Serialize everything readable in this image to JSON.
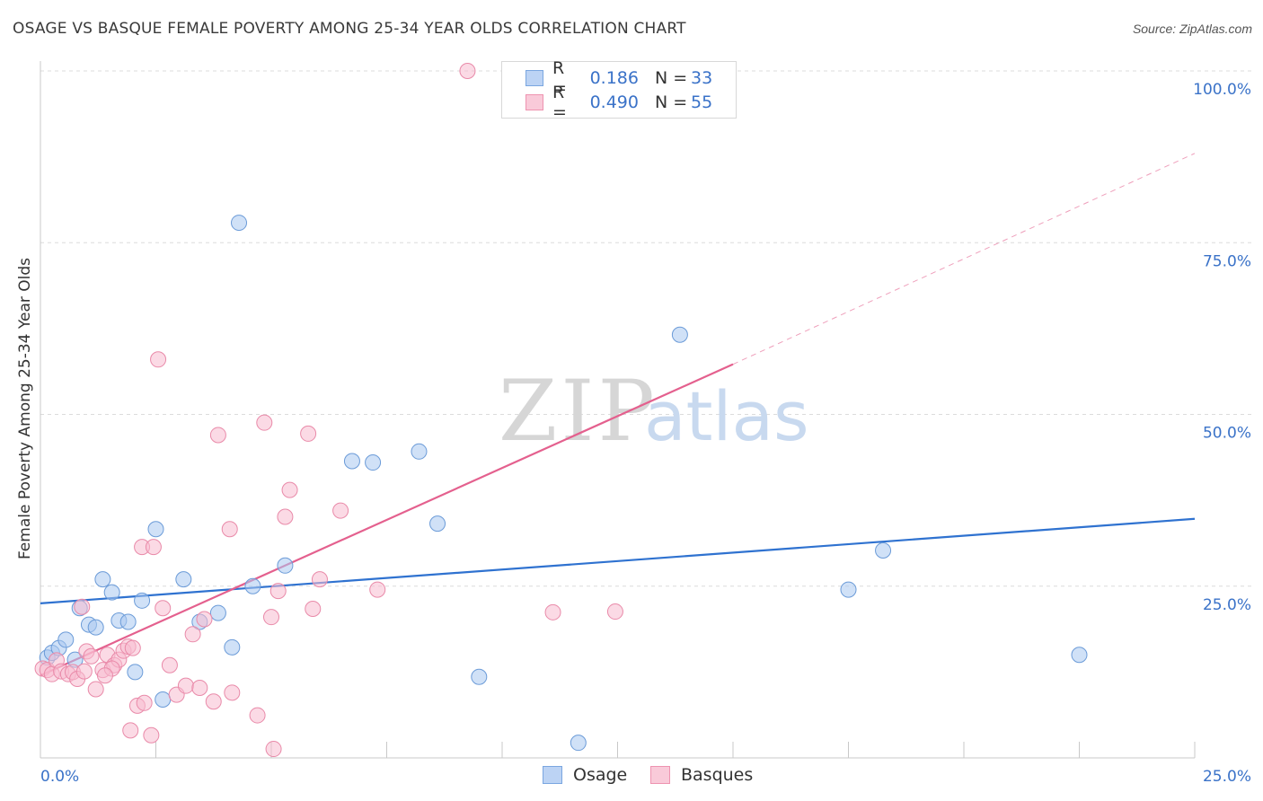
{
  "title": "OSAGE VS BASQUE FEMALE POVERTY AMONG 25-34 YEAR OLDS CORRELATION CHART",
  "source": "Source: ZipAtlas.com",
  "watermark": {
    "zip": "ZIP",
    "atlas": "atlas"
  },
  "legend": {
    "rows": [
      {
        "r_label": "R =",
        "r_value": "0.186",
        "n_label": "N =",
        "n_value": "33",
        "color": "#a9c8f0",
        "stroke": "#7aa6e0"
      },
      {
        "r_label": "R =",
        "r_value": "0.490",
        "n_label": "N =",
        "n_value": "55",
        "color": "#f7bcd0",
        "stroke": "#ee93b0"
      }
    ]
  },
  "bottom_legend": [
    {
      "label": "Osage",
      "color": "#bcd3f4",
      "stroke": "#7aa6e0"
    },
    {
      "label": "Basques",
      "color": "#f9cad9",
      "stroke": "#ee93b0"
    }
  ],
  "chart_data": {
    "type": "scatter",
    "xlabel": "",
    "ylabel": "Female Poverty Among 25-34 Year Olds",
    "xlim": [
      0,
      25
    ],
    "ylim": [
      0,
      105
    ],
    "x_ticks": [
      "0.0%",
      "25.0%"
    ],
    "y_ticks": [
      {
        "value": 25,
        "label": "25.0%"
      },
      {
        "value": 50,
        "label": "50.0%"
      },
      {
        "value": 75,
        "label": "75.0%"
      },
      {
        "value": 100,
        "label": "100.0%"
      }
    ],
    "grid": true,
    "series": [
      {
        "name": "Osage",
        "color": "#a9c8f0",
        "stroke": "#6b9bd8",
        "trend_color": "#2f72d0",
        "trend": {
          "x0": 0,
          "y0": 22.5,
          "x1": 25,
          "y1": 34.8
        },
        "points": [
          [
            0.15,
            14.6
          ],
          [
            0.25,
            15.3
          ],
          [
            0.4,
            16.0
          ],
          [
            0.55,
            17.2
          ],
          [
            0.75,
            14.3
          ],
          [
            0.85,
            21.8
          ],
          [
            1.05,
            19.4
          ],
          [
            1.2,
            19.0
          ],
          [
            1.35,
            26.0
          ],
          [
            1.55,
            24.1
          ],
          [
            1.7,
            20.0
          ],
          [
            1.9,
            19.8
          ],
          [
            2.05,
            12.5
          ],
          [
            2.2,
            22.9
          ],
          [
            2.5,
            33.3
          ],
          [
            2.65,
            8.5
          ],
          [
            3.1,
            26.0
          ],
          [
            3.45,
            19.8
          ],
          [
            3.85,
            21.1
          ],
          [
            4.15,
            16.1
          ],
          [
            4.3,
            77.9
          ],
          [
            4.6,
            25.0
          ],
          [
            5.3,
            28.0
          ],
          [
            6.75,
            43.2
          ],
          [
            7.2,
            43.0
          ],
          [
            8.2,
            44.6
          ],
          [
            8.6,
            34.1
          ],
          [
            9.5,
            11.8
          ],
          [
            11.65,
            2.2
          ],
          [
            13.85,
            61.6
          ],
          [
            17.5,
            24.5
          ],
          [
            18.25,
            30.2
          ],
          [
            22.5,
            15.0
          ]
        ]
      },
      {
        "name": "Basques",
        "color": "#f7bcd0",
        "stroke": "#e98aa9",
        "trend_color": "#e4608e",
        "trend": {
          "x0": 0,
          "y0": 12.0,
          "x1": 15.0,
          "y1": 57.3
        },
        "trend_dashed_to": {
          "x": 25,
          "y": 88.0
        },
        "points": [
          [
            0.05,
            13.0
          ],
          [
            0.15,
            12.8
          ],
          [
            0.25,
            12.2
          ],
          [
            0.35,
            14.2
          ],
          [
            0.45,
            12.6
          ],
          [
            0.6,
            12.2
          ],
          [
            0.7,
            12.5
          ],
          [
            0.8,
            11.5
          ],
          [
            0.9,
            22.0
          ],
          [
            1.0,
            15.5
          ],
          [
            1.1,
            14.8
          ],
          [
            1.2,
            10.0
          ],
          [
            1.35,
            12.8
          ],
          [
            1.45,
            15.0
          ],
          [
            1.6,
            13.5
          ],
          [
            1.7,
            14.3
          ],
          [
            1.8,
            15.6
          ],
          [
            1.9,
            16.2
          ],
          [
            1.55,
            13.0
          ],
          [
            1.95,
            4.0
          ],
          [
            2.1,
            7.6
          ],
          [
            2.2,
            30.7
          ],
          [
            2.45,
            30.7
          ],
          [
            2.25,
            8.0
          ],
          [
            2.4,
            3.3
          ],
          [
            2.55,
            58.0
          ],
          [
            2.65,
            21.8
          ],
          [
            2.8,
            13.5
          ],
          [
            2.95,
            9.2
          ],
          [
            3.15,
            10.5
          ],
          [
            3.3,
            18.0
          ],
          [
            3.55,
            20.2
          ],
          [
            3.75,
            8.2
          ],
          [
            3.85,
            47.0
          ],
          [
            4.1,
            33.3
          ],
          [
            4.15,
            9.5
          ],
          [
            4.7,
            6.2
          ],
          [
            4.85,
            48.8
          ],
          [
            5.0,
            20.5
          ],
          [
            5.05,
            1.3
          ],
          [
            5.3,
            35.1
          ],
          [
            5.4,
            39.0
          ],
          [
            5.8,
            47.2
          ],
          [
            5.9,
            21.7
          ],
          [
            6.05,
            26.0
          ],
          [
            6.5,
            36.0
          ],
          [
            7.3,
            24.5
          ],
          [
            9.25,
            100.0
          ],
          [
            11.1,
            21.2
          ],
          [
            12.45,
            21.3
          ],
          [
            1.4,
            12.0
          ],
          [
            0.95,
            12.6
          ],
          [
            2.0,
            16.0
          ],
          [
            3.45,
            10.2
          ],
          [
            5.15,
            24.3
          ]
        ]
      }
    ]
  }
}
